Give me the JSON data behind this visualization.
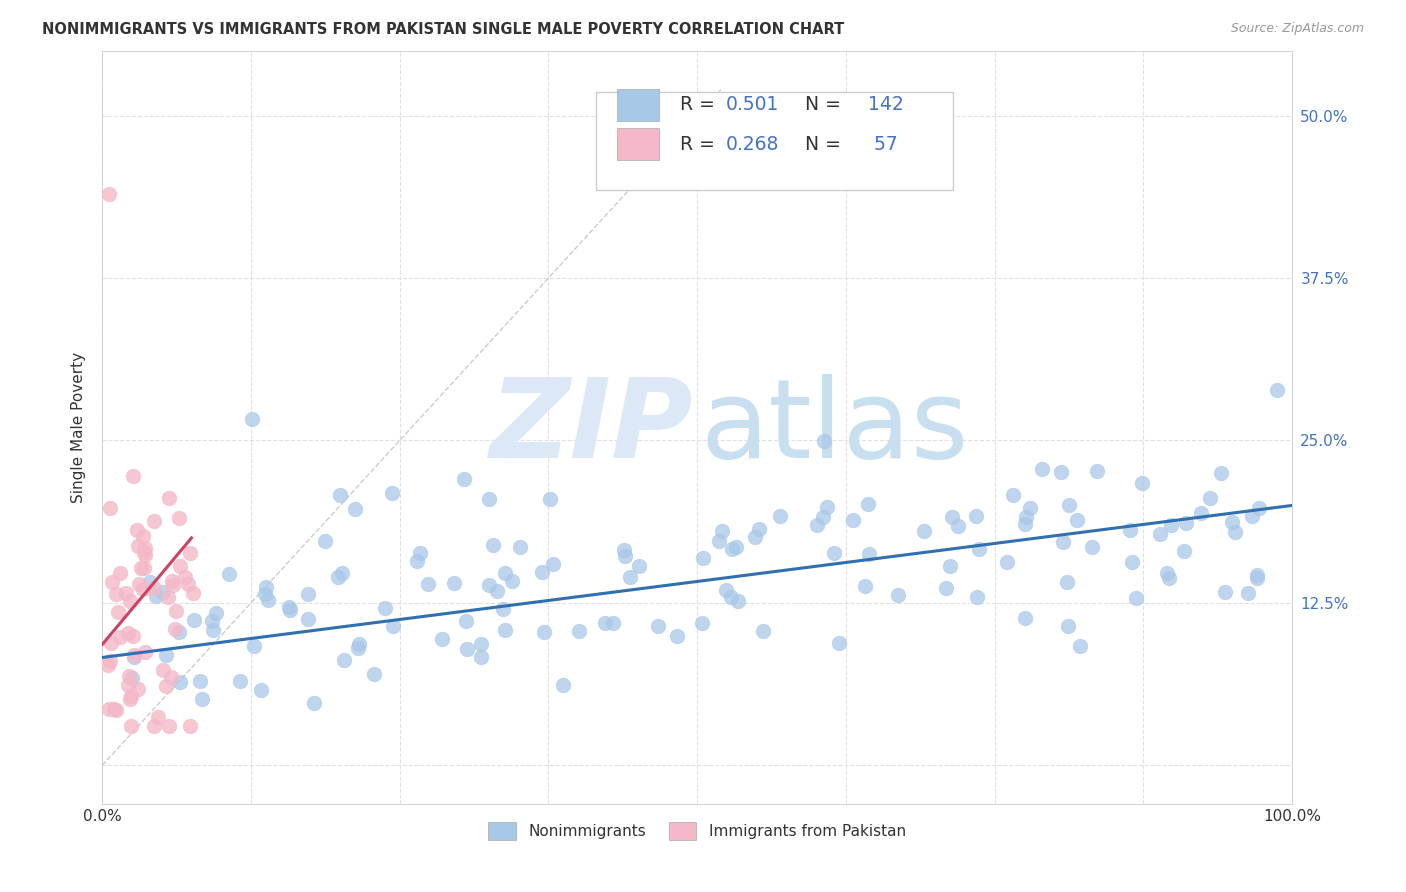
{
  "title": "NONIMMIGRANTS VS IMMIGRANTS FROM PAKISTAN SINGLE MALE POVERTY CORRELATION CHART",
  "source": "Source: ZipAtlas.com",
  "ylabel": "Single Male Poverty",
  "xlim": [
    0,
    1.0
  ],
  "ylim": [
    -0.03,
    0.55
  ],
  "blue_color": "#a8c8e8",
  "pink_color": "#f4b8c8",
  "blue_line_color": "#3070b0",
  "pink_line_color": "#d04060",
  "diagonal_color": "#cccccc",
  "R_blue": "0.501",
  "N_blue": "142",
  "R_pink": "0.268",
  "N_pink": " 57",
  "legend_label_blue": "Nonimmigrants",
  "legend_label_pink": "Immigrants from Pakistan",
  "background_color": "#ffffff",
  "grid_color": "#e0e0e0",
  "label_color": "#4472c4",
  "text_color": "#333333",
  "blue_trend_y0": 0.083,
  "blue_trend_y1": 0.2,
  "pink_trend_x0": 0.0,
  "pink_trend_x1": 0.075,
  "pink_trend_y0": 0.093,
  "pink_trend_y1": 0.175
}
